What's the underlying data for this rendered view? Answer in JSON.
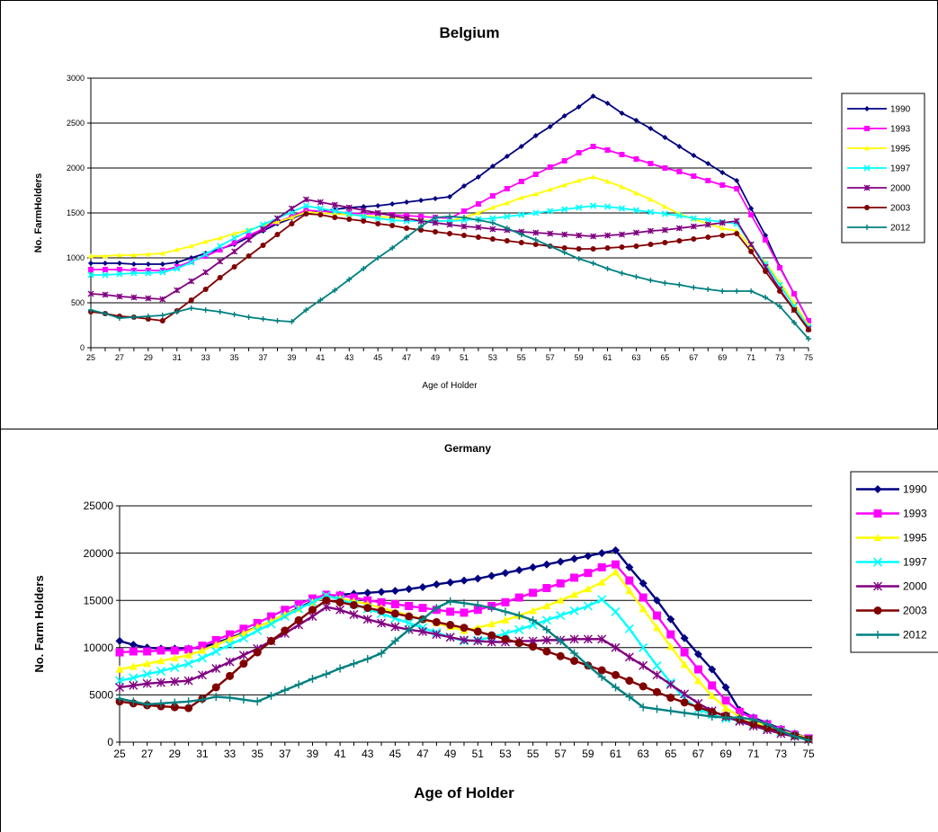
{
  "chart_data": [
    {
      "type": "line",
      "title": "Belgium",
      "xlabel": "Age of Holder",
      "ylabel": "No. FarmHolders",
      "x": [
        25,
        26,
        27,
        28,
        29,
        30,
        31,
        32,
        33,
        34,
        35,
        36,
        37,
        38,
        39,
        40,
        41,
        42,
        43,
        44,
        45,
        46,
        47,
        48,
        49,
        50,
        51,
        52,
        53,
        54,
        55,
        56,
        57,
        58,
        59,
        60,
        61,
        62,
        63,
        64,
        65,
        66,
        67,
        68,
        69,
        70,
        71,
        72,
        73,
        74,
        75
      ],
      "xticks": [
        25,
        27,
        29,
        31,
        33,
        35,
        37,
        39,
        41,
        43,
        45,
        47,
        49,
        51,
        53,
        55,
        57,
        59,
        61,
        63,
        65,
        67,
        69,
        71,
        73,
        75
      ],
      "ylim": [
        0,
        3000
      ],
      "yticks": [
        0,
        500,
        1000,
        1500,
        2000,
        2500,
        3000
      ],
      "grid": true,
      "legend_position": "right",
      "series": [
        {
          "name": "1990",
          "color": "#000080",
          "marker": "diamond",
          "values": [
            940,
            940,
            940,
            930,
            930,
            930,
            950,
            1000,
            1050,
            1100,
            1150,
            1230,
            1300,
            1380,
            1440,
            1500,
            1520,
            1540,
            1560,
            1570,
            1580,
            1600,
            1620,
            1640,
            1660,
            1680,
            1800,
            1900,
            2020,
            2130,
            2240,
            2360,
            2460,
            2580,
            2680,
            2800,
            2720,
            2610,
            2530,
            2440,
            2340,
            2240,
            2140,
            2050,
            1950,
            1860,
            1550,
            1250,
            900,
            600,
            300
          ]
        },
        {
          "name": "1993",
          "color": "#FF00FF",
          "marker": "square",
          "values": [
            870,
            870,
            870,
            860,
            860,
            860,
            900,
            960,
            1020,
            1090,
            1170,
            1250,
            1320,
            1400,
            1460,
            1530,
            1520,
            1510,
            1500,
            1490,
            1490,
            1480,
            1470,
            1460,
            1450,
            1440,
            1520,
            1600,
            1690,
            1770,
            1850,
            1930,
            2010,
            2080,
            2170,
            2240,
            2200,
            2150,
            2100,
            2050,
            2000,
            1960,
            1910,
            1860,
            1810,
            1770,
            1480,
            1200,
            890,
            600,
            300
          ]
        },
        {
          "name": "1995",
          "color": "#FFFF00",
          "marker": "triangle",
          "values": [
            1020,
            1020,
            1030,
            1030,
            1040,
            1050,
            1090,
            1130,
            1180,
            1220,
            1270,
            1310,
            1360,
            1400,
            1450,
            1510,
            1500,
            1490,
            1480,
            1470,
            1460,
            1450,
            1440,
            1420,
            1410,
            1410,
            1450,
            1500,
            1560,
            1610,
            1670,
            1710,
            1760,
            1810,
            1860,
            1900,
            1850,
            1790,
            1720,
            1650,
            1570,
            1490,
            1430,
            1380,
            1330,
            1300,
            1120,
            950,
            730,
            500,
            250
          ]
        },
        {
          "name": "1997",
          "color": "#00FFFF",
          "marker": "x",
          "values": [
            810,
            810,
            820,
            830,
            830,
            840,
            880,
            950,
            1040,
            1130,
            1220,
            1300,
            1370,
            1440,
            1510,
            1580,
            1550,
            1520,
            1490,
            1460,
            1440,
            1420,
            1410,
            1410,
            1410,
            1410,
            1420,
            1430,
            1440,
            1460,
            1480,
            1500,
            1520,
            1540,
            1560,
            1580,
            1570,
            1550,
            1530,
            1510,
            1490,
            1470,
            1440,
            1420,
            1400,
            1380,
            1150,
            930,
            700,
            460,
            230
          ]
        },
        {
          "name": "2000",
          "color": "#800080",
          "marker": "asterisk",
          "values": [
            600,
            590,
            570,
            560,
            550,
            540,
            640,
            740,
            840,
            960,
            1070,
            1200,
            1320,
            1440,
            1550,
            1650,
            1620,
            1590,
            1560,
            1530,
            1500,
            1470,
            1440,
            1410,
            1390,
            1370,
            1350,
            1340,
            1320,
            1310,
            1290,
            1280,
            1270,
            1260,
            1250,
            1240,
            1250,
            1260,
            1280,
            1300,
            1310,
            1330,
            1350,
            1370,
            1390,
            1410,
            1150,
            900,
            650,
            420,
            210
          ]
        },
        {
          "name": "2003",
          "color": "#800000",
          "marker": "circle",
          "values": [
            400,
            380,
            350,
            340,
            320,
            300,
            410,
            530,
            650,
            780,
            900,
            1020,
            1140,
            1260,
            1380,
            1490,
            1480,
            1450,
            1430,
            1410,
            1380,
            1360,
            1330,
            1310,
            1290,
            1270,
            1250,
            1230,
            1210,
            1190,
            1170,
            1150,
            1130,
            1110,
            1100,
            1100,
            1110,
            1120,
            1130,
            1150,
            1170,
            1190,
            1210,
            1230,
            1250,
            1270,
            1070,
            850,
            630,
            420,
            200
          ]
        },
        {
          "name": "2012",
          "color": "#008080",
          "marker": "plus",
          "values": [
            420,
            380,
            330,
            340,
            350,
            360,
            400,
            440,
            420,
            400,
            370,
            340,
            320,
            300,
            290,
            420,
            530,
            640,
            760,
            880,
            1000,
            1110,
            1230,
            1350,
            1450,
            1460,
            1450,
            1420,
            1390,
            1330,
            1260,
            1200,
            1130,
            1060,
            990,
            940,
            880,
            830,
            790,
            750,
            720,
            700,
            670,
            650,
            630,
            630,
            630,
            560,
            460,
            280,
            100
          ]
        }
      ]
    },
    {
      "type": "line",
      "title": "Germany",
      "xlabel": "Age of Holder",
      "ylabel": "No. Farm Holders",
      "x": [
        25,
        26,
        27,
        28,
        29,
        30,
        31,
        32,
        33,
        34,
        35,
        36,
        37,
        38,
        39,
        40,
        41,
        42,
        43,
        44,
        45,
        46,
        47,
        48,
        49,
        50,
        51,
        52,
        53,
        54,
        55,
        56,
        57,
        58,
        59,
        60,
        61,
        62,
        63,
        64,
        65,
        66,
        67,
        68,
        69,
        70,
        71,
        72,
        73,
        74,
        75
      ],
      "xticks": [
        25,
        27,
        29,
        31,
        33,
        35,
        37,
        39,
        41,
        43,
        45,
        47,
        49,
        51,
        53,
        55,
        57,
        59,
        61,
        63,
        65,
        67,
        69,
        71,
        73,
        75
      ],
      "ylim": [
        0,
        25000
      ],
      "yticks": [
        0,
        5000,
        10000,
        15000,
        20000,
        25000
      ],
      "grid": true,
      "legend_position": "right",
      "series": [
        {
          "name": "1990",
          "color": "#000080",
          "marker": "diamond",
          "values": [
            10700,
            10300,
            10000,
            9900,
            9900,
            9900,
            10000,
            10500,
            11000,
            11600,
            12200,
            12800,
            13500,
            14200,
            14900,
            15400,
            15600,
            15700,
            15800,
            15900,
            16000,
            16200,
            16400,
            16700,
            16900,
            17100,
            17300,
            17600,
            17900,
            18200,
            18500,
            18800,
            19100,
            19400,
            19700,
            20000,
            20300,
            18500,
            16800,
            15000,
            13000,
            11000,
            9300,
            7700,
            5800,
            3400,
            2600,
            2000,
            1400,
            900,
            400
          ]
        },
        {
          "name": "1993",
          "color": "#FF00FF",
          "marker": "square",
          "values": [
            9500,
            9600,
            9600,
            9700,
            9700,
            9800,
            10200,
            10800,
            11400,
            12000,
            12600,
            13300,
            14000,
            14600,
            15200,
            15600,
            15500,
            15300,
            15000,
            14800,
            14600,
            14400,
            14200,
            14000,
            13800,
            13700,
            14000,
            14400,
            14800,
            15300,
            15800,
            16300,
            16800,
            17400,
            17900,
            18500,
            18800,
            17100,
            15300,
            13400,
            11400,
            9500,
            7700,
            6000,
            4400,
            3200,
            2500,
            1900,
            1300,
            800,
            400
          ]
        },
        {
          "name": "1995",
          "color": "#FFFF00",
          "marker": "triangle",
          "values": [
            7700,
            8000,
            8300,
            8600,
            8900,
            9200,
            9700,
            10300,
            10900,
            11500,
            12200,
            12800,
            13500,
            14100,
            14800,
            15400,
            15200,
            14900,
            14600,
            14200,
            13800,
            13400,
            13000,
            12600,
            12200,
            11800,
            12100,
            12500,
            12900,
            13400,
            13900,
            14400,
            15000,
            15600,
            16200,
            16900,
            18000,
            16000,
            14100,
            12100,
            10100,
            8200,
            6500,
            4900,
            3600,
            2700,
            2200,
            1700,
            1200,
            800,
            400
          ]
        },
        {
          "name": "1997",
          "color": "#00FFFF",
          "marker": "x",
          "values": [
            6500,
            6800,
            7200,
            7500,
            7900,
            8300,
            8900,
            9600,
            10300,
            11000,
            11800,
            12500,
            13300,
            14100,
            14800,
            15500,
            15100,
            14600,
            14100,
            13600,
            13100,
            12600,
            12100,
            11600,
            11100,
            10700,
            10800,
            11100,
            11500,
            11900,
            12400,
            12900,
            13400,
            13900,
            14400,
            15100,
            13800,
            12000,
            10000,
            8100,
            6300,
            4600,
            3500,
            2900,
            2500,
            2300,
            1900,
            1500,
            1100,
            700,
            300
          ]
        },
        {
          "name": "2000",
          "color": "#800080",
          "marker": "asterisk",
          "values": [
            5800,
            6000,
            6200,
            6300,
            6400,
            6500,
            7100,
            7800,
            8500,
            9200,
            9900,
            10700,
            11500,
            12400,
            13300,
            14300,
            14000,
            13500,
            13000,
            12600,
            12200,
            11900,
            11700,
            11400,
            11100,
            10800,
            10700,
            10600,
            10600,
            10700,
            10700,
            10800,
            10800,
            10900,
            10900,
            10900,
            10000,
            9000,
            8100,
            7100,
            6100,
            5100,
            4100,
            3300,
            2700,
            2200,
            1700,
            1300,
            900,
            600,
            300
          ]
        },
        {
          "name": "2003",
          "color": "#800000",
          "marker": "circle",
          "values": [
            4300,
            4100,
            3900,
            3800,
            3700,
            3600,
            4600,
            5800,
            7000,
            8300,
            9500,
            10700,
            11800,
            12900,
            14000,
            15000,
            14800,
            14500,
            14200,
            13900,
            13600,
            13300,
            13000,
            12700,
            12400,
            12100,
            11700,
            11300,
            10900,
            10500,
            10100,
            9600,
            9100,
            8600,
            8100,
            7600,
            7100,
            6500,
            5900,
            5300,
            4700,
            4200,
            3700,
            3200,
            2800,
            2400,
            1900,
            1500,
            1100,
            700,
            300
          ]
        },
        {
          "name": "2012",
          "color": "#008080",
          "marker": "plus",
          "values": [
            4600,
            4300,
            4000,
            4100,
            4200,
            4300,
            4500,
            4800,
            4700,
            4500,
            4300,
            4900,
            5500,
            6100,
            6700,
            7200,
            7800,
            8300,
            8800,
            9400,
            10700,
            11900,
            13000,
            14200,
            14900,
            14700,
            14500,
            14200,
            13800,
            13400,
            12900,
            11900,
            10700,
            9400,
            8100,
            6900,
            5800,
            4800,
            3700,
            3500,
            3300,
            3100,
            2900,
            2700,
            2600,
            2600,
            2400,
            1900,
            1200,
            600,
            200
          ]
        }
      ]
    }
  ]
}
